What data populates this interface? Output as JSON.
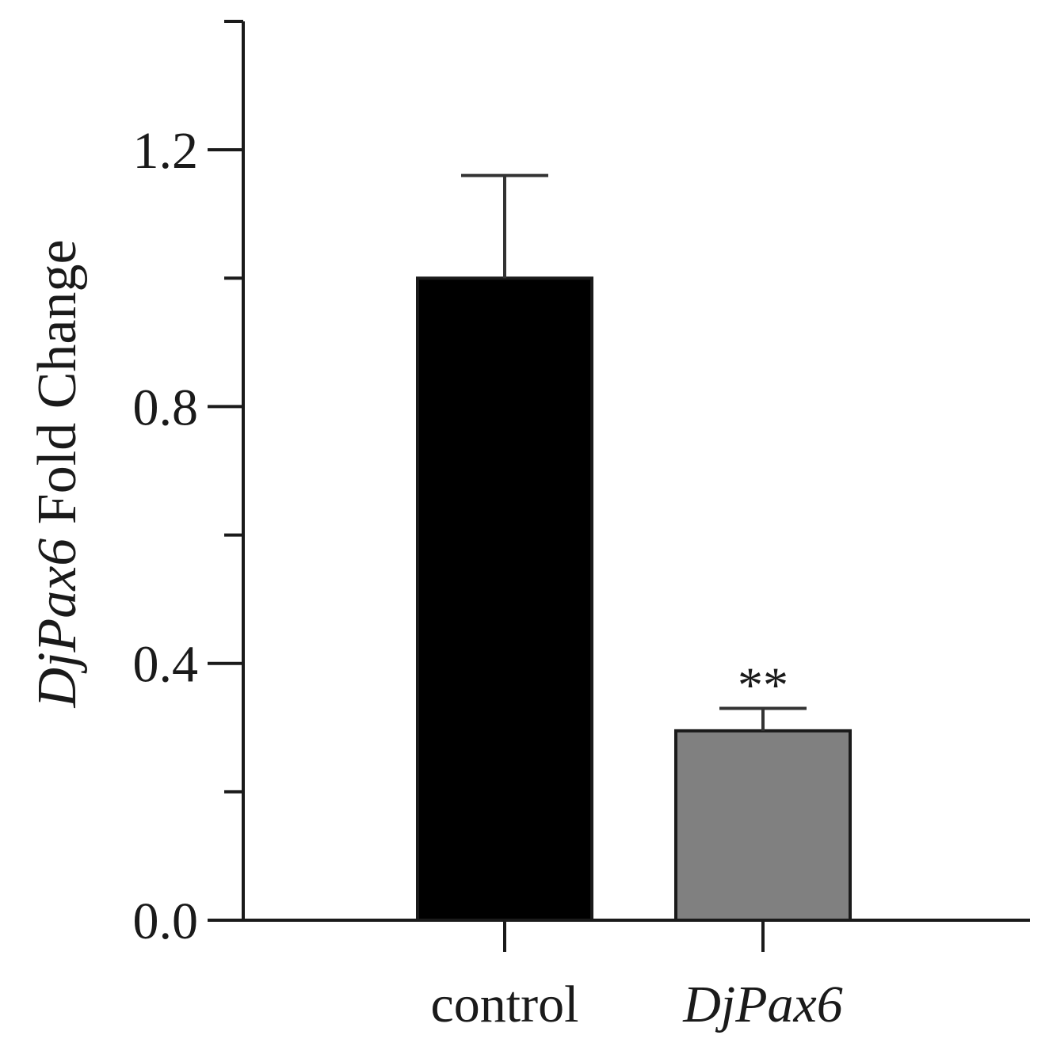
{
  "chart_data": {
    "type": "bar",
    "categories": [
      {
        "label": "control",
        "italic": false
      },
      {
        "label": "DjPax6",
        "italic": true
      }
    ],
    "values": [
      1.0,
      0.295
    ],
    "errors": [
      0.16,
      0.035
    ],
    "bar_colors": [
      "#000000",
      "#808080"
    ],
    "significance": [
      "",
      "**"
    ],
    "ylabel": {
      "italic_part": "DjPax6",
      "rest": " Fold Change"
    },
    "ylim": [
      0,
      1.4
    ],
    "yticks_major": [
      {
        "value": 0.0,
        "label": "0.0"
      },
      {
        "value": 0.4,
        "label": "0.4"
      },
      {
        "value": 0.8,
        "label": "0.8"
      },
      {
        "value": 1.2,
        "label": "1.2"
      }
    ],
    "yticks_minor": [
      0.2,
      0.6,
      1.0,
      1.4
    ],
    "grid": false
  }
}
